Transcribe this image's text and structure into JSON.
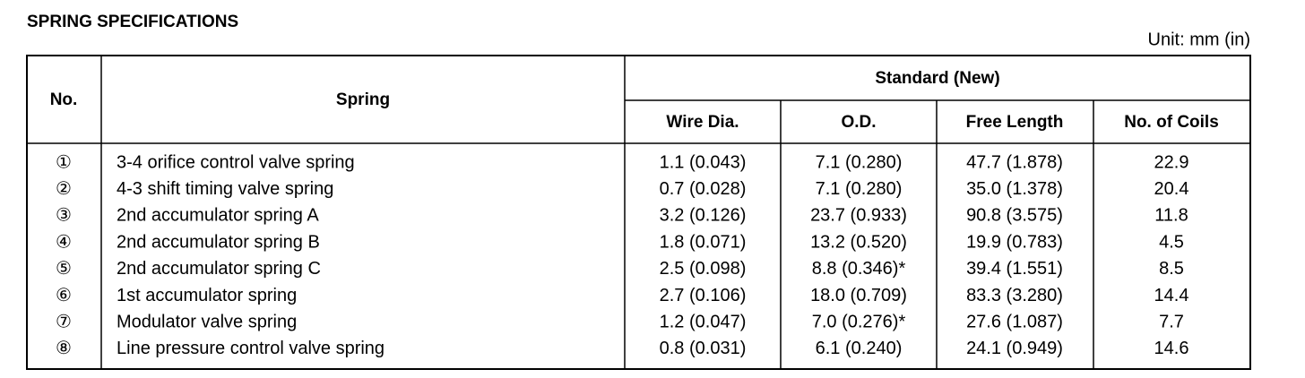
{
  "header": {
    "title": "SPRING SPECIFICATIONS",
    "unit": "Unit: mm (in)"
  },
  "table": {
    "columns": {
      "no": "No.",
      "spring": "Spring",
      "group": "Standard (New)",
      "sub": [
        "Wire Dia.",
        "O.D.",
        "Free Length",
        "No. of Coils"
      ]
    },
    "rows": [
      [
        "①",
        "3-4 orifice control valve spring",
        "1.1 (0.043)",
        "7.1 (0.280)",
        "47.7 (1.878)",
        "22.9"
      ],
      [
        "②",
        "4-3 shift timing valve spring",
        "0.7 (0.028)",
        "7.1 (0.280)",
        "35.0 (1.378)",
        "20.4"
      ],
      [
        "③",
        "2nd accumulator spring A",
        "3.2 (0.126)",
        "23.7 (0.933)",
        "90.8 (3.575)",
        "11.8"
      ],
      [
        "④",
        "2nd accumulator spring B",
        "1.8 (0.071)",
        "13.2 (0.520)",
        "19.9 (0.783)",
        "4.5"
      ],
      [
        "⑤",
        "2nd accumulator spring C",
        "2.5 (0.098)",
        "8.8 (0.346)*",
        "39.4 (1.551)",
        "8.5"
      ],
      [
        "⑥",
        "1st accumulator spring",
        "2.7 (0.106)",
        "18.0 (0.709)",
        "83.3 (3.280)",
        "14.4"
      ],
      [
        "⑦",
        "Modulator valve spring",
        "1.2 (0.047)",
        "7.0 (0.276)*",
        "27.6 (1.087)",
        "7.7"
      ],
      [
        "⑧",
        "Line pressure control valve spring",
        "0.8 (0.031)",
        "6.1 (0.240)",
        "24.1 (0.949)",
        "14.6"
      ]
    ]
  }
}
